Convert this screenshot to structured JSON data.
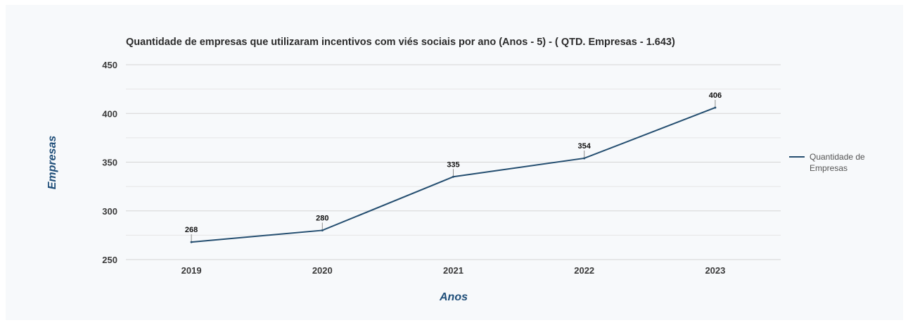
{
  "chart_data": {
    "type": "line",
    "title": "Quantidade de empresas que utilizaram incentivos com viés sociais por ano (Anos - 5) - ( QTD. Empresas - 1.643)",
    "xlabel": "Anos",
    "ylabel": "Empresas",
    "categories": [
      "2019",
      "2020",
      "2021",
      "2022",
      "2023"
    ],
    "series": [
      {
        "name": "Quantidade de Empresas",
        "values": [
          268,
          280,
          335,
          354,
          406
        ]
      }
    ],
    "ylim": [
      250,
      450
    ],
    "yticks": [
      "250",
      "300",
      "350",
      "400",
      "450"
    ],
    "grid": true,
    "legend": "right",
    "data_labels": true
  },
  "colors": {
    "series": "#244e70",
    "axis_title": "#1f4e79",
    "grid": "#d9d9d9"
  }
}
